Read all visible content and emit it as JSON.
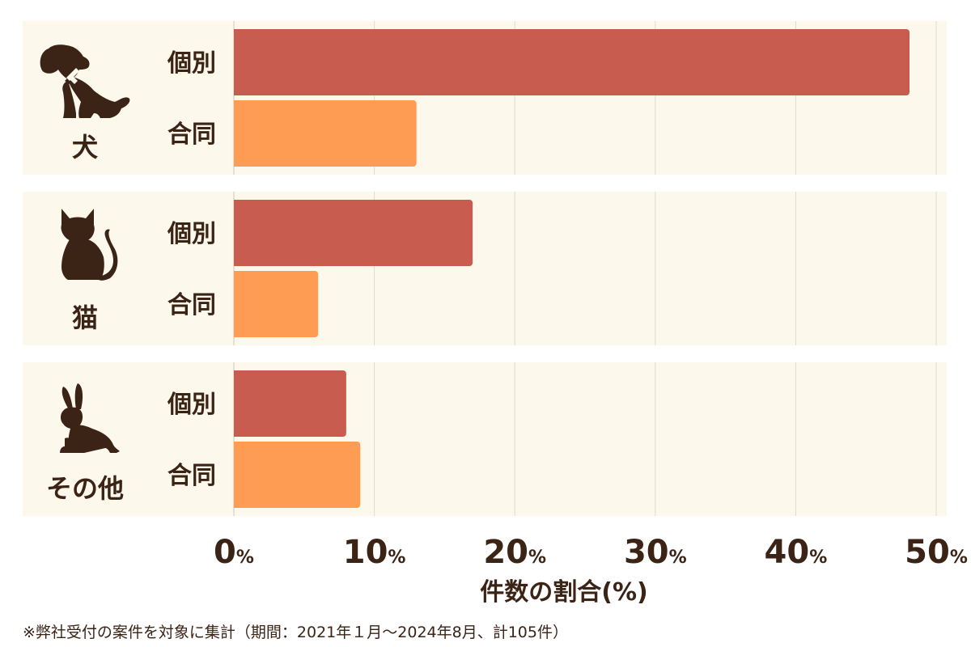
{
  "chart_data": {
    "type": "bar",
    "orientation": "horizontal",
    "groups": [
      {
        "name": "犬",
        "icon": "dog-icon",
        "bars": [
          {
            "label": "個別",
            "value": 48.1
          },
          {
            "label": "合同",
            "value": 13.0
          }
        ]
      },
      {
        "name": "猫",
        "icon": "cat-icon",
        "bars": [
          {
            "label": "個別",
            "value": 17.0
          },
          {
            "label": "合同",
            "value": 6.0
          }
        ]
      },
      {
        "name": "その他",
        "icon": "rabbit-icon",
        "bars": [
          {
            "label": "個別",
            "value": 8.0
          },
          {
            "label": "合同",
            "value": 9.0
          }
        ]
      }
    ],
    "xlim": [
      0,
      50
    ],
    "ticks": [
      0,
      10,
      20,
      30,
      40,
      50
    ],
    "tick_unit": "%",
    "xlabel": "件数の割合(%)",
    "grid": true,
    "colors": {
      "個別": "#c85c4f",
      "合同": "#fd9c52",
      "band": "#fdf8ec",
      "grid": "#dfdad0",
      "text": "#3b2316",
      "icon": "#3b2316"
    }
  },
  "footnote": "※弊社受付の案件を対象に集計（期間：2021年１月〜2024年8月、計105件）"
}
